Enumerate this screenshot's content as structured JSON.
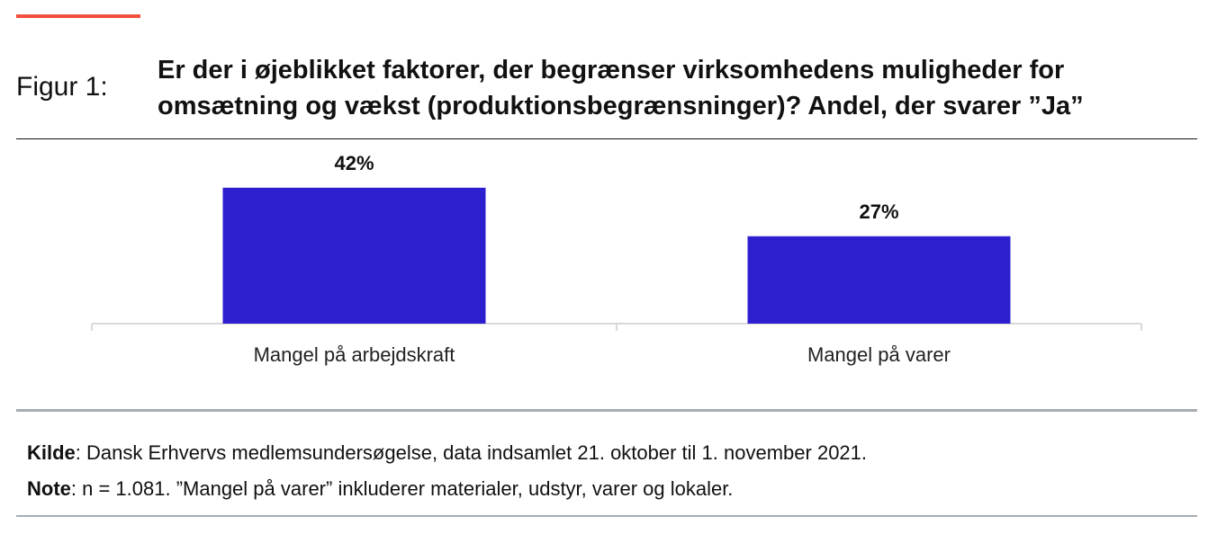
{
  "figure": {
    "label": "Figur 1:",
    "title": "Er der i øjeblikket faktorer, der begrænser virksomhedens muligheder for omsætning og vækst (produktionsbegrænsninger)? Andel, der svarer ”Ja”"
  },
  "chart_data": {
    "type": "bar",
    "categories": [
      "Mangel på arbejdskraft",
      "Mangel på varer"
    ],
    "values": [
      42,
      27
    ],
    "value_labels": [
      "42%",
      "27%"
    ],
    "ylim": [
      0,
      50
    ],
    "grid": false,
    "legend": "none",
    "bar_color": "#2d1fd0"
  },
  "footer": {
    "source_key": "Kilde",
    "source_text": ": Dansk Erhvervs medlemsundersøgelse, data indsamlet 21. oktober til 1. november 2021.",
    "note_key": "Note",
    "note_text": ": n = 1.081. ”Mangel på varer” inkluderer materialer, udstyr, varer og lokaler."
  },
  "colors": {
    "accent": "#f0503c",
    "bar": "#2d1fd0",
    "axis": "#d9d9d9",
    "rule_grey": "#a7adb3"
  }
}
